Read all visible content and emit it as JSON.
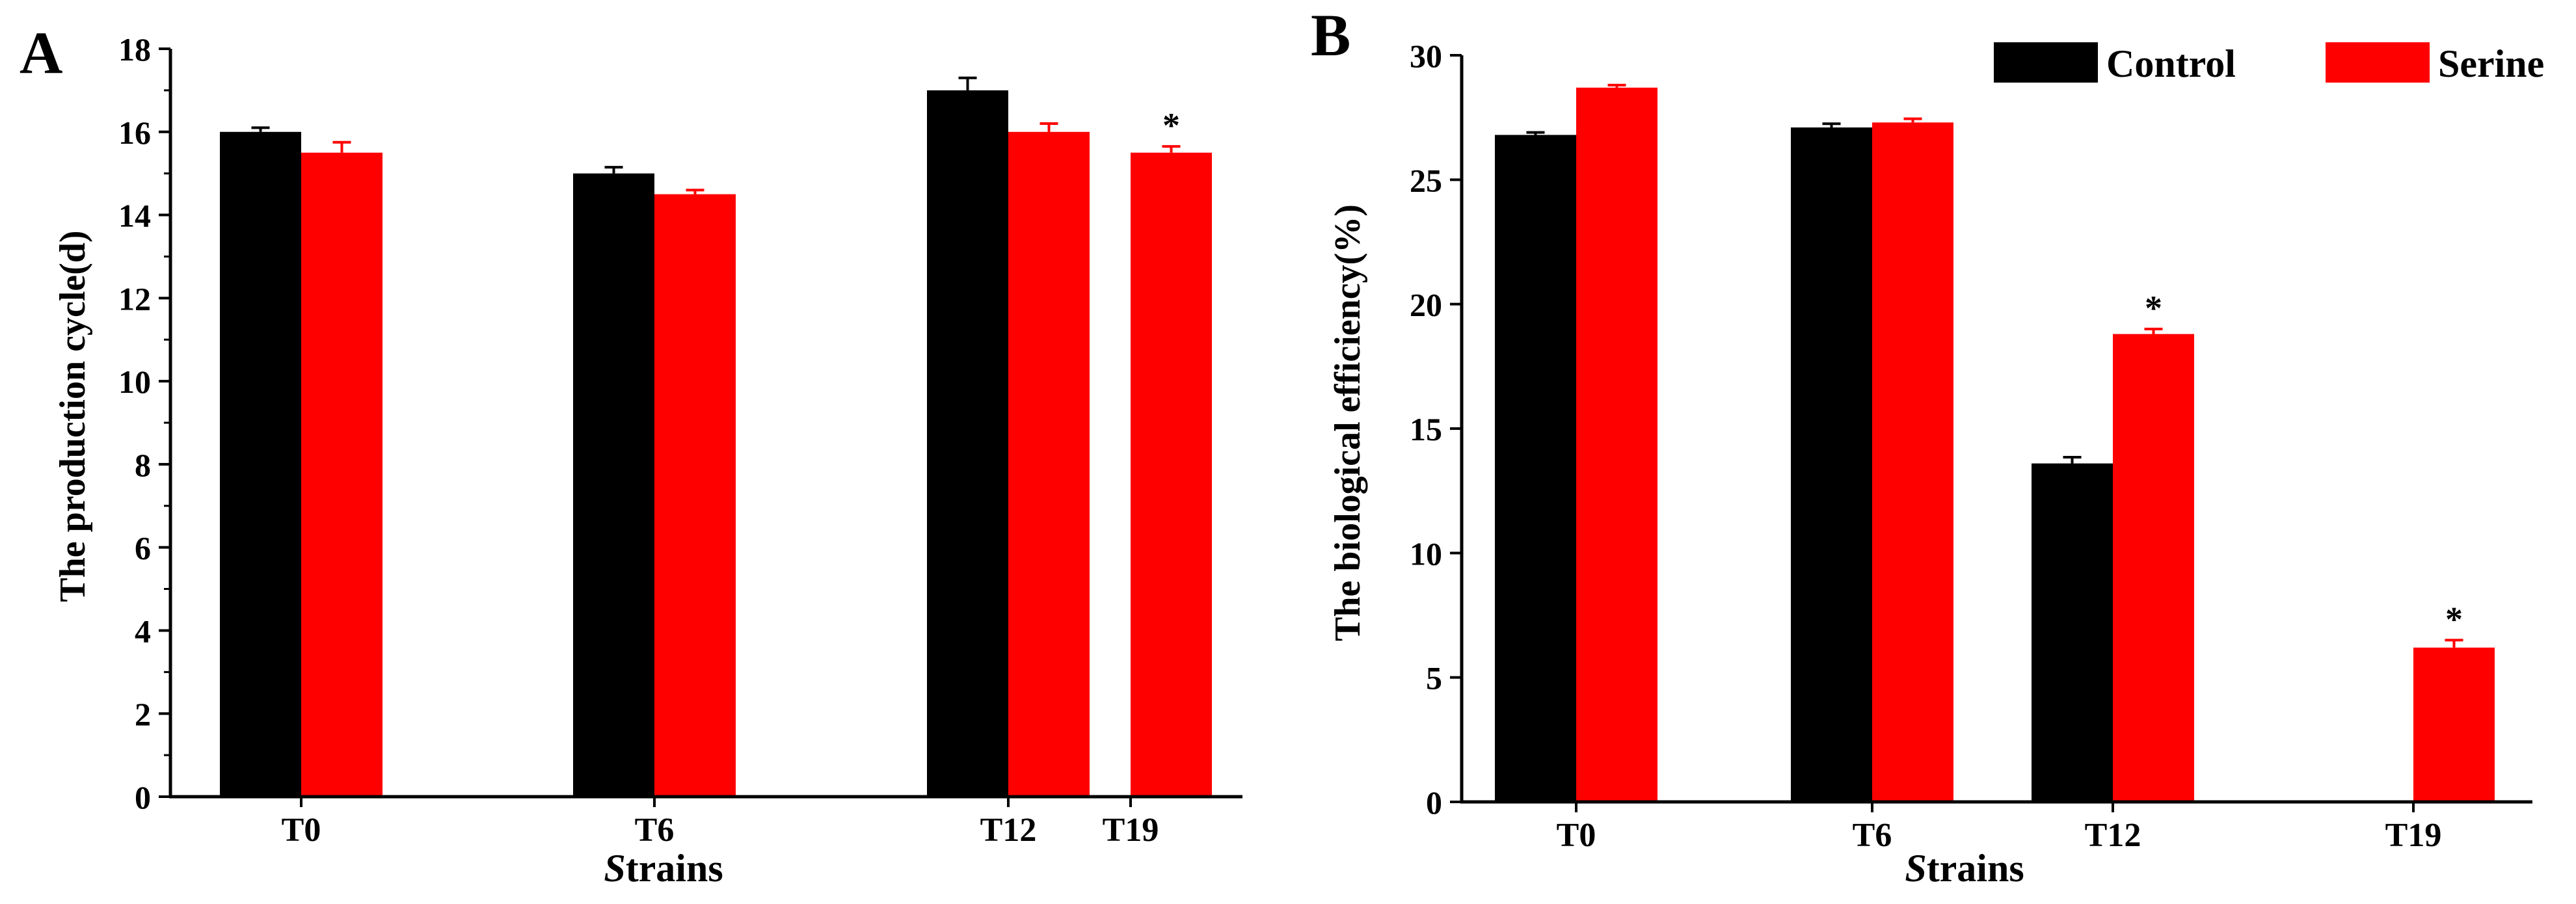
{
  "colors": {
    "control": "#000000",
    "serine": "#ff0000",
    "axis": "#000000"
  },
  "legend": {
    "items": [
      "Control",
      "Serine"
    ]
  },
  "chart_data": [
    {
      "panel_label": "A",
      "type": "bar",
      "title": "",
      "xlabel_italic": "S",
      "xlabel_rest": "trains",
      "ylabel": "The production cycle(d)",
      "categories": [
        "T0",
        "T6",
        "T12",
        "T19"
      ],
      "ylim": [
        0,
        18
      ],
      "yticks": [
        "0",
        "2",
        "4",
        "6",
        "8",
        "10",
        "12",
        "14",
        "16",
        "18"
      ],
      "series": [
        {
          "name": "Control",
          "values": [
            16.0,
            15.0,
            17.0,
            null
          ],
          "errors": [
            0.1,
            0.15,
            0.3,
            null
          ],
          "sig": [
            "",
            "",
            "",
            ""
          ]
        },
        {
          "name": "Serine",
          "values": [
            15.5,
            14.5,
            16.0,
            15.5
          ],
          "errors": [
            0.25,
            0.1,
            0.2,
            0.15
          ],
          "sig": [
            "",
            "",
            "",
            "*"
          ]
        }
      ]
    },
    {
      "panel_label": "B",
      "type": "bar",
      "title": "",
      "xlabel_italic": "S",
      "xlabel_rest": "trains",
      "ylabel": "The biological efficiency(%)",
      "categories": [
        "T0",
        "T6",
        "T12",
        "T19"
      ],
      "ylim": [
        0,
        30
      ],
      "yticks": [
        "0",
        "5",
        "10",
        "15",
        "20",
        "25",
        "30"
      ],
      "series": [
        {
          "name": "Control",
          "values": [
            26.8,
            27.1,
            13.6,
            null
          ],
          "errors": [
            0.1,
            0.15,
            0.25,
            null
          ],
          "sig": [
            "",
            "",
            "",
            ""
          ]
        },
        {
          "name": "Serine",
          "values": [
            28.7,
            27.3,
            18.8,
            6.2
          ],
          "errors": [
            0.1,
            0.15,
            0.2,
            0.3
          ],
          "sig": [
            "",
            "",
            "*",
            "*"
          ]
        }
      ]
    }
  ]
}
